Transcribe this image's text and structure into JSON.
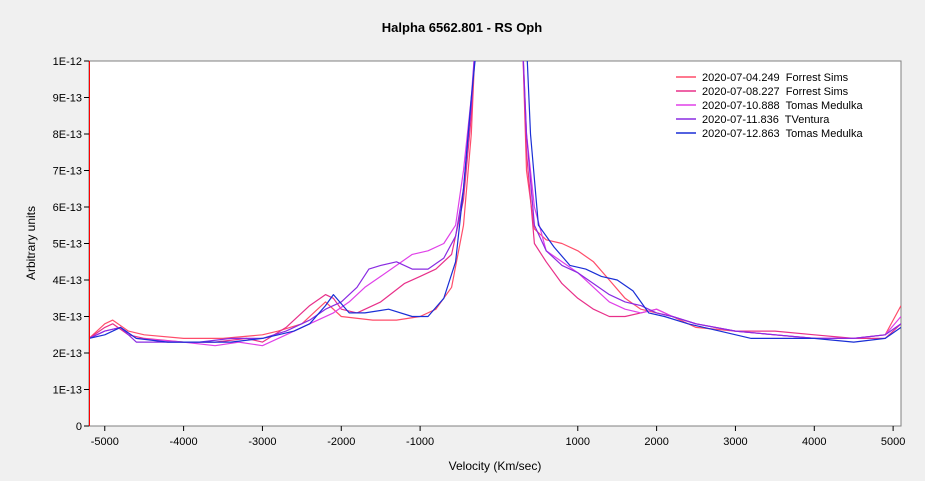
{
  "chart_data": {
    "type": "line",
    "title": "Halpha 6562.801 - RS Oph",
    "xlabel": "Velocity (Km/sec)",
    "ylabel": "Arbitrary units",
    "xlim": [
      -5200,
      5100
    ],
    "ylim": [
      0,
      1e-12
    ],
    "x_ticks": [
      -5000,
      -4000,
      -3000,
      -2000,
      -1000,
      1000,
      2000,
      3000,
      4000,
      5000
    ],
    "x_tick_labels": [
      "-5000",
      "-4000",
      "-3000",
      "-2000",
      "-1000",
      "1000",
      "2000",
      "3000",
      "4000",
      "5000"
    ],
    "y_ticks": [
      0,
      1e-13,
      2e-13,
      3e-13,
      4e-13,
      5e-13,
      6e-13,
      7e-13,
      8e-13,
      9e-13,
      1e-12
    ],
    "y_tick_labels": [
      "0",
      "1E-13",
      "2E-13",
      "3E-13",
      "4E-13",
      "5E-13",
      "6E-13",
      "7E-13",
      "8E-13",
      "9E-13",
      "1E-12"
    ],
    "grid": false,
    "legend_position": "top-right",
    "series": [
      {
        "name": "2020-07-04.249  Forrest Sims",
        "color": "#ff4d6a",
        "points": [
          [
            -5200,
            2.4e-13
          ],
          [
            -5000,
            2.8e-13
          ],
          [
            -4900,
            2.9e-13
          ],
          [
            -4700,
            2.6e-13
          ],
          [
            -4500,
            2.5e-13
          ],
          [
            -4000,
            2.4e-13
          ],
          [
            -3500,
            2.4e-13
          ],
          [
            -3000,
            2.5e-13
          ],
          [
            -2800,
            2.6e-13
          ],
          [
            -2500,
            2.8e-13
          ],
          [
            -2300,
            3.2e-13
          ],
          [
            -2200,
            3.4e-13
          ],
          [
            -2000,
            3e-13
          ],
          [
            -1600,
            2.9e-13
          ],
          [
            -1300,
            2.9e-13
          ],
          [
            -1000,
            3e-13
          ],
          [
            -800,
            3.2e-13
          ],
          [
            -600,
            3.8e-13
          ],
          [
            -450,
            5.5e-13
          ],
          [
            -350,
            8e-13
          ],
          [
            -300,
            1.05e-12
          ],
          [
            300,
            1.05e-12
          ],
          [
            350,
            7e-13
          ],
          [
            450,
            5.4e-13
          ],
          [
            600,
            5.1e-13
          ],
          [
            800,
            5e-13
          ],
          [
            1000,
            4.8e-13
          ],
          [
            1200,
            4.5e-13
          ],
          [
            1400,
            4e-13
          ],
          [
            1600,
            3.5e-13
          ],
          [
            1800,
            3.2e-13
          ],
          [
            2000,
            3.1e-13
          ],
          [
            2200,
            3e-13
          ],
          [
            2500,
            2.7e-13
          ],
          [
            3000,
            2.6e-13
          ],
          [
            3500,
            2.5e-13
          ],
          [
            4000,
            2.4e-13
          ],
          [
            4500,
            2.4e-13
          ],
          [
            4900,
            2.5e-13
          ],
          [
            5100,
            3.3e-13
          ]
        ]
      },
      {
        "name": "2020-07-08.227  Forrest Sims",
        "color": "#e8308a",
        "points": [
          [
            -5200,
            2.4e-13
          ],
          [
            -5000,
            2.7e-13
          ],
          [
            -4900,
            2.8e-13
          ],
          [
            -4700,
            2.5e-13
          ],
          [
            -4500,
            2.4e-13
          ],
          [
            -4000,
            2.3e-13
          ],
          [
            -3600,
            2.3e-13
          ],
          [
            -3200,
            2.4e-13
          ],
          [
            -3000,
            2.3e-13
          ],
          [
            -2700,
            2.7e-13
          ],
          [
            -2400,
            3.3e-13
          ],
          [
            -2200,
            3.6e-13
          ],
          [
            -2100,
            3.5e-13
          ],
          [
            -2000,
            3.2e-13
          ],
          [
            -1800,
            3.1e-13
          ],
          [
            -1500,
            3.4e-13
          ],
          [
            -1200,
            3.9e-13
          ],
          [
            -1000,
            4.1e-13
          ],
          [
            -800,
            4.3e-13
          ],
          [
            -600,
            4.7e-13
          ],
          [
            -450,
            6.2e-13
          ],
          [
            -350,
            8.5e-13
          ],
          [
            -300,
            1.05e-12
          ],
          [
            300,
            1.05e-12
          ],
          [
            350,
            7.5e-13
          ],
          [
            450,
            5e-13
          ],
          [
            600,
            4.5e-13
          ],
          [
            800,
            3.9e-13
          ],
          [
            1000,
            3.5e-13
          ],
          [
            1200,
            3.2e-13
          ],
          [
            1400,
            3e-13
          ],
          [
            1600,
            3e-13
          ],
          [
            1800,
            3.1e-13
          ],
          [
            2000,
            3.2e-13
          ],
          [
            2200,
            3e-13
          ],
          [
            2500,
            2.8e-13
          ],
          [
            3000,
            2.6e-13
          ],
          [
            3500,
            2.6e-13
          ],
          [
            4000,
            2.5e-13
          ],
          [
            4500,
            2.4e-13
          ],
          [
            4900,
            2.4e-13
          ],
          [
            5100,
            2.8e-13
          ]
        ]
      },
      {
        "name": "2020-07-10.888  Tomas Medulka",
        "color": "#e040e8",
        "points": [
          [
            -5200,
            2.4e-13
          ],
          [
            -5000,
            2.6e-13
          ],
          [
            -4800,
            2.7e-13
          ],
          [
            -4600,
            2.4e-13
          ],
          [
            -4000,
            2.3e-13
          ],
          [
            -3600,
            2.2e-13
          ],
          [
            -3300,
            2.3e-13
          ],
          [
            -3000,
            2.2e-13
          ],
          [
            -2700,
            2.5e-13
          ],
          [
            -2400,
            2.8e-13
          ],
          [
            -2100,
            3.1e-13
          ],
          [
            -1900,
            3.4e-13
          ],
          [
            -1700,
            3.8e-13
          ],
          [
            -1500,
            4.1e-13
          ],
          [
            -1300,
            4.4e-13
          ],
          [
            -1100,
            4.7e-13
          ],
          [
            -900,
            4.8e-13
          ],
          [
            -700,
            5e-13
          ],
          [
            -550,
            5.5e-13
          ],
          [
            -450,
            7e-13
          ],
          [
            -350,
            9e-13
          ],
          [
            -300,
            1.05e-12
          ],
          [
            300,
            1.05e-12
          ],
          [
            350,
            8e-13
          ],
          [
            450,
            6e-13
          ],
          [
            600,
            4.8e-13
          ],
          [
            800,
            4.5e-13
          ],
          [
            1000,
            4.2e-13
          ],
          [
            1200,
            3.8e-13
          ],
          [
            1400,
            3.4e-13
          ],
          [
            1600,
            3.2e-13
          ],
          [
            1800,
            3.1e-13
          ],
          [
            2000,
            3.2e-13
          ],
          [
            2200,
            3e-13
          ],
          [
            2500,
            2.8e-13
          ],
          [
            3000,
            2.6e-13
          ],
          [
            3500,
            2.5e-13
          ],
          [
            4000,
            2.4e-13
          ],
          [
            4500,
            2.4e-13
          ],
          [
            4900,
            2.5e-13
          ],
          [
            5100,
            3e-13
          ]
        ]
      },
      {
        "name": "2020-07-11.836  TVentura",
        "color": "#8a2be2",
        "points": [
          [
            -5200,
            2.4e-13
          ],
          [
            -5000,
            2.6e-13
          ],
          [
            -4800,
            2.7e-13
          ],
          [
            -4600,
            2.3e-13
          ],
          [
            -4200,
            2.3e-13
          ],
          [
            -3800,
            2.3e-13
          ],
          [
            -3400,
            2.4e-13
          ],
          [
            -3000,
            2.4e-13
          ],
          [
            -2700,
            2.6e-13
          ],
          [
            -2400,
            2.9e-13
          ],
          [
            -2200,
            3.2e-13
          ],
          [
            -2000,
            3.4e-13
          ],
          [
            -1800,
            3.8e-13
          ],
          [
            -1650,
            4.3e-13
          ],
          [
            -1500,
            4.4e-13
          ],
          [
            -1300,
            4.5e-13
          ],
          [
            -1100,
            4.3e-13
          ],
          [
            -900,
            4.3e-13
          ],
          [
            -700,
            4.6e-13
          ],
          [
            -550,
            5.2e-13
          ],
          [
            -450,
            6.5e-13
          ],
          [
            -350,
            8.8e-13
          ],
          [
            -300,
            1.05e-12
          ],
          [
            300,
            1.05e-12
          ],
          [
            350,
            8e-13
          ],
          [
            450,
            5.5e-13
          ],
          [
            600,
            4.8e-13
          ],
          [
            800,
            4.4e-13
          ],
          [
            1000,
            4.2e-13
          ],
          [
            1200,
            3.9e-13
          ],
          [
            1400,
            3.6e-13
          ],
          [
            1600,
            3.4e-13
          ],
          [
            1800,
            3.3e-13
          ],
          [
            2000,
            3.1e-13
          ],
          [
            2200,
            3e-13
          ],
          [
            2500,
            2.8e-13
          ],
          [
            3000,
            2.6e-13
          ],
          [
            3500,
            2.5e-13
          ],
          [
            4000,
            2.4e-13
          ],
          [
            4500,
            2.4e-13
          ],
          [
            4900,
            2.5e-13
          ],
          [
            5100,
            2.8e-13
          ]
        ]
      },
      {
        "name": "2020-07-12.863  Tomas Medulka",
        "color": "#1a2fd6",
        "points": [
          [
            -5200,
            2.4e-13
          ],
          [
            -5000,
            2.5e-13
          ],
          [
            -4800,
            2.7e-13
          ],
          [
            -4600,
            2.4e-13
          ],
          [
            -4200,
            2.3e-13
          ],
          [
            -3800,
            2.3e-13
          ],
          [
            -3400,
            2.3e-13
          ],
          [
            -3000,
            2.4e-13
          ],
          [
            -2800,
            2.5e-13
          ],
          [
            -2600,
            2.6e-13
          ],
          [
            -2400,
            2.8e-13
          ],
          [
            -2200,
            3.3e-13
          ],
          [
            -2100,
            3.6e-13
          ],
          [
            -1900,
            3.1e-13
          ],
          [
            -1700,
            3.1e-13
          ],
          [
            -1400,
            3.2e-13
          ],
          [
            -1100,
            3e-13
          ],
          [
            -900,
            3e-13
          ],
          [
            -700,
            3.5e-13
          ],
          [
            -550,
            4.5e-13
          ],
          [
            -450,
            6.5e-13
          ],
          [
            -350,
            9e-13
          ],
          [
            -280,
            1.05e-12
          ],
          [
            350,
            1.05e-12
          ],
          [
            400,
            8e-13
          ],
          [
            500,
            5.5e-13
          ],
          [
            700,
            4.9e-13
          ],
          [
            900,
            4.4e-13
          ],
          [
            1100,
            4.3e-13
          ],
          [
            1300,
            4.1e-13
          ],
          [
            1500,
            4e-13
          ],
          [
            1700,
            3.7e-13
          ],
          [
            1900,
            3.1e-13
          ],
          [
            2100,
            3e-13
          ],
          [
            2400,
            2.8e-13
          ],
          [
            2800,
            2.6e-13
          ],
          [
            3200,
            2.4e-13
          ],
          [
            3600,
            2.4e-13
          ],
          [
            4000,
            2.4e-13
          ],
          [
            4500,
            2.3e-13
          ],
          [
            4900,
            2.4e-13
          ],
          [
            5100,
            2.7e-13
          ]
        ]
      }
    ]
  }
}
